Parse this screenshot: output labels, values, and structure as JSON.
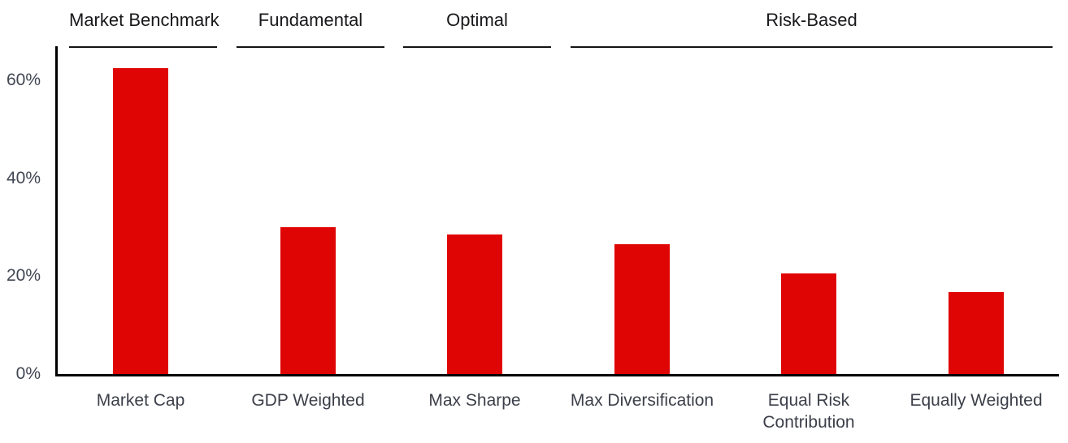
{
  "chart_data": {
    "type": "bar",
    "title": "",
    "categories": [
      "Market Cap",
      "GDP Weighted",
      "Max Sharpe",
      "Max Diversification",
      "Equal Risk Contribution",
      "Equally Weighted"
    ],
    "values": [
      62.5,
      30,
      28.5,
      26.5,
      20.5,
      16.7
    ],
    "value_unit": "percent",
    "series_color": "#e00505",
    "group_headers": [
      {
        "label": "Market Benchmark",
        "first_category": 0,
        "last_category": 0
      },
      {
        "label": "Fundamental",
        "first_category": 1,
        "last_category": 1
      },
      {
        "label": "Optimal",
        "first_category": 2,
        "last_category": 2
      },
      {
        "label": "Risk-Based",
        "first_category": 3,
        "last_category": 5
      }
    ],
    "y_axis": {
      "tick_labels": [
        "0%",
        "20%",
        "40%",
        "60%"
      ],
      "tick_values": [
        0,
        20,
        40,
        60
      ],
      "ylim": [
        0,
        67
      ]
    },
    "xlabel": "",
    "ylabel": "",
    "grid": false,
    "legend": "none",
    "colors": {
      "bar": "#e00505",
      "axis": "#000000",
      "group_header_text": "#18181b",
      "tick_label_text": "#414653",
      "category_label_text": "#3c3f49"
    }
  }
}
